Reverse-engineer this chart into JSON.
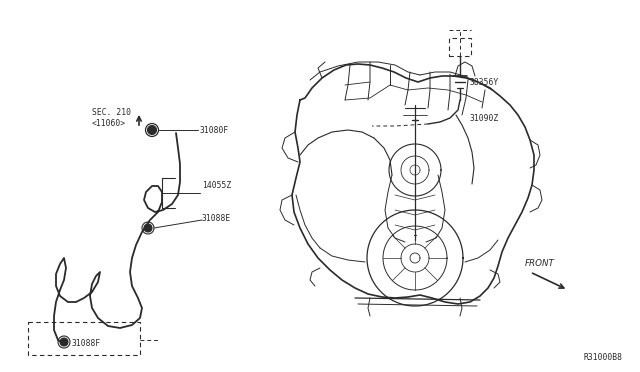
{
  "bg_color": "#ffffff",
  "line_color": "#2a2a2a",
  "diagram_code": "R31000B8",
  "label_sec210": "SEC. 210\n<11060>",
  "label_31080F_top": "31080F",
  "label_14055Z": "14055Z",
  "label_31088E": "31088E",
  "label_31088F_bot": "31088F",
  "label_38356Y": "38356Y",
  "label_31090Z": "31090Z",
  "label_FRONT": "FRONT",
  "font_size": 5.8
}
